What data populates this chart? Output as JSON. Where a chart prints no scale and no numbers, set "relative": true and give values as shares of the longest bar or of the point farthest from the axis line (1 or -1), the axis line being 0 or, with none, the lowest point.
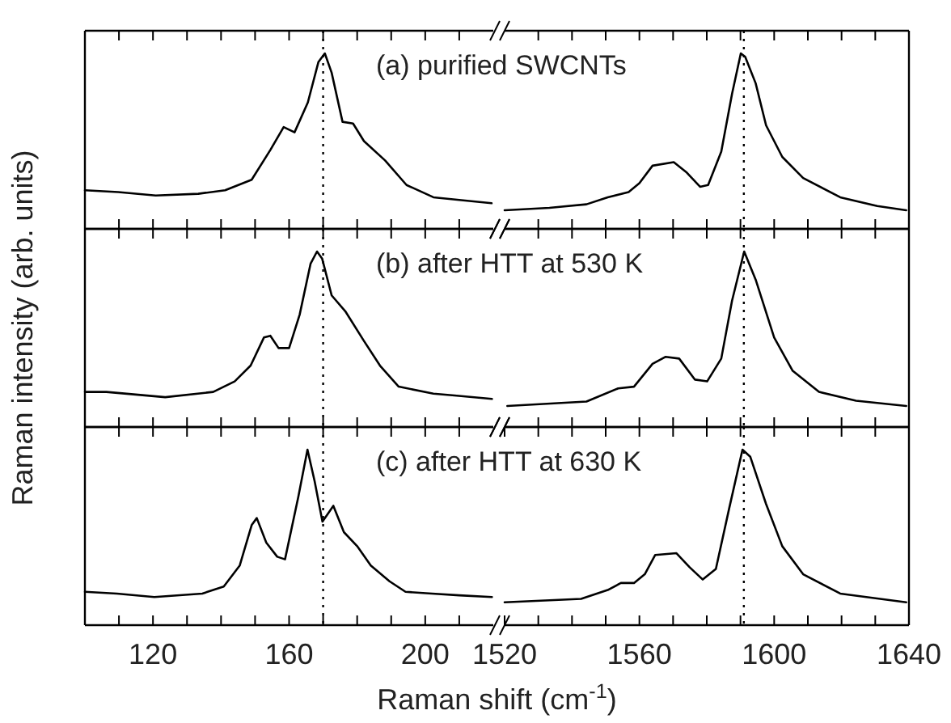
{
  "chart_data": [
    {
      "type": "line",
      "relative": true,
      "tick_labels": false,
      "xlim": [
        100,
        220
      ],
      "xticks": [
        {
          "value": 110,
          "label": null
        },
        {
          "value": 120,
          "label": null
        },
        {
          "value": 130,
          "label": null
        },
        {
          "value": 140,
          "label": null
        },
        {
          "value": 150,
          "label": null
        },
        {
          "value": 160,
          "label": null
        },
        {
          "value": 170,
          "label": null
        },
        {
          "value": 180,
          "label": null
        },
        {
          "value": 190,
          "label": null
        },
        {
          "value": 200,
          "label": null
        },
        {
          "value": 210,
          "label": null
        }
      ],
      "ref_lines": [
        {
          "axis": "x",
          "value": 170,
          "line_style": "dotted"
        }
      ],
      "annotations": [
        "(a) purified SWCNTs"
      ],
      "series": [
        {
          "color": "#000000",
          "x": [
            100,
            109.8,
            120.8,
            133.3,
            141.2,
            149,
            154.5,
            158.4,
            161.6,
            165.5,
            168.6,
            170.5,
            172.5,
            175.7,
            178.8,
            182,
            188.2,
            194.5,
            202.4,
            210,
            219.5
          ],
          "values": [
            0.22,
            0.21,
            0.19,
            0.2,
            0.22,
            0.28,
            0.45,
            0.58,
            0.55,
            0.72,
            0.95,
            1,
            0.89,
            0.61,
            0.6,
            0.5,
            0.39,
            0.25,
            0.18,
            0.165,
            0.146
          ]
        }
      ]
    },
    {
      "type": "line",
      "relative": true,
      "tick_labels": false,
      "xlim": [
        1520,
        1640
      ],
      "xticks": [
        {
          "value": 1530,
          "label": null
        },
        {
          "value": 1540,
          "label": null
        },
        {
          "value": 1550,
          "label": null
        },
        {
          "value": 1560,
          "label": null
        },
        {
          "value": 1570,
          "label": null
        },
        {
          "value": 1580,
          "label": null
        },
        {
          "value": 1590,
          "label": null
        },
        {
          "value": 1600,
          "label": null
        },
        {
          "value": 1610,
          "label": null
        },
        {
          "value": 1620,
          "label": null
        },
        {
          "value": 1630,
          "label": null
        }
      ],
      "ref_lines": [
        {
          "axis": "x",
          "value": 1591,
          "line_style": "dotted"
        }
      ],
      "series": [
        {
          "color": "#000000",
          "x": [
            1520,
            1533.3,
            1544.3,
            1550.6,
            1556.8,
            1560,
            1563.9,
            1570.2,
            1574.1,
            1578,
            1580.4,
            1584.3,
            1587.5,
            1590.1,
            1591.4,
            1594.5,
            1597.6,
            1602.4,
            1608.6,
            1619.6,
            1630.6,
            1639.2
          ],
          "values": [
            0.106,
            0.12,
            0.14,
            0.18,
            0.21,
            0.26,
            0.36,
            0.38,
            0.32,
            0.24,
            0.25,
            0.44,
            0.77,
            1,
            0.98,
            0.83,
            0.59,
            0.41,
            0.29,
            0.18,
            0.13,
            0.106
          ]
        }
      ]
    },
    {
      "type": "line",
      "relative": true,
      "tick_labels": false,
      "xlim": [
        100,
        220
      ],
      "xticks": [
        {
          "value": 110,
          "label": null
        },
        {
          "value": 120,
          "label": null
        },
        {
          "value": 130,
          "label": null
        },
        {
          "value": 140,
          "label": null
        },
        {
          "value": 150,
          "label": null
        },
        {
          "value": 160,
          "label": null
        },
        {
          "value": 170,
          "label": null
        },
        {
          "value": 180,
          "label": null
        },
        {
          "value": 190,
          "label": null
        },
        {
          "value": 200,
          "label": null
        },
        {
          "value": 210,
          "label": null
        }
      ],
      "ref_lines": [
        {
          "axis": "x",
          "value": 170,
          "line_style": "dotted"
        }
      ],
      "annotations": [
        "(b) after HTT at 530 K"
      ],
      "ylabel": "Raman intensity (arb. units)",
      "series": [
        {
          "color": "#000000",
          "x": [
            100,
            106.3,
            123.6,
            137.7,
            144,
            148.7,
            152.6,
            154.5,
            156.9,
            160,
            163.1,
            166.3,
            168.2,
            169.7,
            172.5,
            176.5,
            182,
            186.7,
            192.2,
            202.4,
            208.6,
            219.6
          ],
          "values": [
            0.2,
            0.2,
            0.17,
            0.2,
            0.26,
            0.35,
            0.51,
            0.52,
            0.45,
            0.45,
            0.64,
            0.93,
            1,
            0.96,
            0.75,
            0.66,
            0.49,
            0.35,
            0.23,
            0.19,
            0.18,
            0.16
          ]
        }
      ]
    },
    {
      "type": "line",
      "relative": true,
      "tick_labels": false,
      "xlim": [
        1520,
        1640
      ],
      "xticks": [
        {
          "value": 1530,
          "label": null
        },
        {
          "value": 1540,
          "label": null
        },
        {
          "value": 1550,
          "label": null
        },
        {
          "value": 1560,
          "label": null
        },
        {
          "value": 1570,
          "label": null
        },
        {
          "value": 1580,
          "label": null
        },
        {
          "value": 1590,
          "label": null
        },
        {
          "value": 1600,
          "label": null
        },
        {
          "value": 1610,
          "label": null
        },
        {
          "value": 1620,
          "label": null
        },
        {
          "value": 1630,
          "label": null
        }
      ],
      "ref_lines": [
        {
          "axis": "x",
          "value": 1591,
          "line_style": "dotted"
        }
      ],
      "series": [
        {
          "color": "#000000",
          "x": [
            1520.8,
            1544.3,
            1553.7,
            1558.4,
            1563.9,
            1567.8,
            1571.8,
            1576.5,
            1580.1,
            1584.3,
            1587.5,
            1591.1,
            1594.5,
            1600,
            1605.5,
            1613.3,
            1624.3,
            1639.2
          ],
          "values": [
            0.12,
            0.145,
            0.22,
            0.23,
            0.36,
            0.4,
            0.39,
            0.27,
            0.26,
            0.39,
            0.72,
            1,
            0.84,
            0.51,
            0.32,
            0.2,
            0.15,
            0.12
          ]
        }
      ]
    },
    {
      "type": "line",
      "relative": true,
      "tick_labels": "x",
      "xlim": [
        100,
        220
      ],
      "xticks": [
        {
          "value": 110,
          "label": null
        },
        120,
        {
          "value": 130,
          "label": null
        },
        {
          "value": 140,
          "label": null
        },
        {
          "value": 150,
          "label": null
        },
        160,
        {
          "value": 170,
          "label": null
        },
        {
          "value": 180,
          "label": null
        },
        {
          "value": 190,
          "label": null
        },
        200,
        {
          "value": 210,
          "label": null
        }
      ],
      "ref_lines": [
        {
          "axis": "x",
          "value": 170,
          "line_style": "dotted"
        }
      ],
      "annotations": [
        "(c) after HTT at 630 K"
      ],
      "xlabel": "Raman shift (cm$^{-1}$)",
      "series": [
        {
          "color": "#000000",
          "x": [
            100,
            109.4,
            120.4,
            134.5,
            140.8,
            145.5,
            149,
            150.5,
            153.3,
            156.5,
            158.8,
            162.7,
            165.4,
            167.5,
            169.8,
            173,
            176.1,
            180,
            184,
            189.5,
            194.2,
            202,
            210,
            219.6
          ],
          "values": [
            0.19,
            0.18,
            0.16,
            0.18,
            0.22,
            0.34,
            0.57,
            0.61,
            0.47,
            0.39,
            0.375,
            0.73,
            1,
            0.82,
            0.59,
            0.68,
            0.53,
            0.45,
            0.34,
            0.25,
            0.19,
            0.18,
            0.17,
            0.16
          ]
        }
      ]
    },
    {
      "type": "line",
      "relative": true,
      "tick_labels": "x",
      "xlim": [
        1520,
        1640
      ],
      "xticks": [
        1520,
        {
          "value": 1530,
          "label": null
        },
        {
          "value": 1540,
          "label": null
        },
        {
          "value": 1550,
          "label": null
        },
        1560,
        {
          "value": 1570,
          "label": null
        },
        {
          "value": 1580,
          "label": null
        },
        {
          "value": 1590,
          "label": null
        },
        1600,
        {
          "value": 1610,
          "label": null
        },
        {
          "value": 1620,
          "label": null
        },
        {
          "value": 1630,
          "label": null
        },
        1640
      ],
      "ref_lines": [
        {
          "axis": "x",
          "value": 1591,
          "line_style": "dotted"
        }
      ],
      "series": [
        {
          "color": "#000000",
          "x": [
            1520,
            1542.7,
            1550.6,
            1554.5,
            1558.4,
            1561.6,
            1564.7,
            1571,
            1574.9,
            1578.8,
            1582.7,
            1586.7,
            1590.6,
            1592.9,
            1597.6,
            1602.4,
            1608.6,
            1619.6,
            1639.2
          ],
          "values": [
            0.13,
            0.15,
            0.2,
            0.24,
            0.24,
            0.29,
            0.4,
            0.41,
            0.33,
            0.26,
            0.32,
            0.67,
            1,
            0.96,
            0.69,
            0.45,
            0.29,
            0.18,
            0.13
          ]
        }
      ]
    }
  ]
}
